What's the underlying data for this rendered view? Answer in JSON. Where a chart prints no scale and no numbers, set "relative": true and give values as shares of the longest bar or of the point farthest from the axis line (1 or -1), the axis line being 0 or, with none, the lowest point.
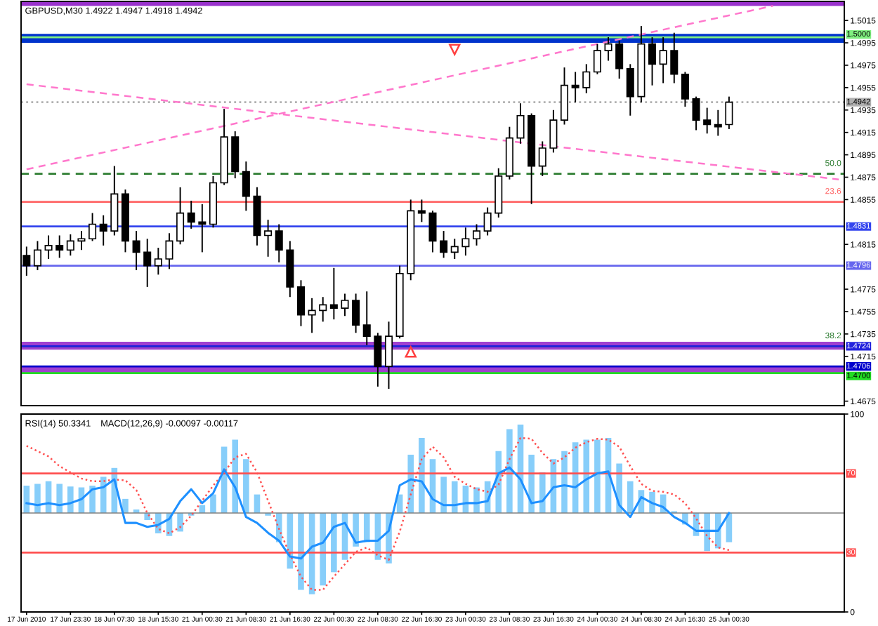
{
  "chart_data": [
    {
      "type": "candlestick",
      "title": "GBPUSD,M30 1.4922 1.4947 1.4918 1.4942",
      "categories": [
        null,
        null,
        null,
        null,
        null,
        null,
        null,
        null,
        null,
        null,
        null,
        null,
        null,
        null,
        null,
        null,
        null,
        null,
        null,
        null,
        null,
        null,
        null,
        null,
        null,
        null,
        null,
        null,
        null,
        null,
        null,
        null,
        null,
        null,
        null,
        null,
        null,
        null,
        null,
        null,
        null,
        null,
        null,
        null,
        null,
        null,
        null,
        null,
        null,
        null,
        null,
        null,
        null,
        null,
        null,
        null,
        null,
        null,
        null,
        null,
        null,
        null,
        null,
        null,
        null,
        null,
        null,
        null,
        null,
        null,
        null,
        null,
        null,
        null,
        null
      ],
      "ohlc": [
        [
          1.4805,
          1.4813,
          1.4787,
          1.4796
        ],
        [
          1.4796,
          1.4818,
          1.4792,
          1.481
        ],
        [
          1.481,
          1.4823,
          1.4802,
          1.4814
        ],
        [
          1.4814,
          1.4823,
          1.4803,
          1.481
        ],
        [
          1.481,
          1.4824,
          1.4805,
          1.4818
        ],
        [
          1.4818,
          1.4827,
          1.481,
          1.482
        ],
        [
          1.482,
          1.4843,
          1.4818,
          1.4833
        ],
        [
          1.4833,
          1.4841,
          1.4814,
          1.4827
        ],
        [
          1.4827,
          1.4885,
          1.4823,
          1.486
        ],
        [
          1.486,
          1.4864,
          1.4808,
          1.4818
        ],
        [
          1.4818,
          1.4827,
          1.4792,
          1.4808
        ],
        [
          1.4808,
          1.482,
          1.4777,
          1.4796
        ],
        [
          1.4796,
          1.4812,
          1.4788,
          1.4802
        ],
        [
          1.4802,
          1.4825,
          1.4793,
          1.4818
        ],
        [
          1.4818,
          1.4866,
          1.4815,
          1.4843
        ],
        [
          1.4843,
          1.4854,
          1.4829,
          1.4835
        ],
        [
          1.4835,
          1.4851,
          1.4808,
          1.4833
        ],
        [
          1.4833,
          1.4876,
          1.483,
          1.487
        ],
        [
          1.487,
          1.4936,
          1.4868,
          1.4911
        ],
        [
          1.4911,
          1.4916,
          1.4874,
          1.488
        ],
        [
          1.488,
          1.4889,
          1.4845,
          1.4858
        ],
        [
          1.4858,
          1.4866,
          1.4814,
          1.4823
        ],
        [
          1.4823,
          1.4837,
          1.4804,
          1.4827
        ],
        [
          1.4827,
          1.4833,
          1.4799,
          1.481
        ],
        [
          1.481,
          1.4818,
          1.4768,
          1.4777
        ],
        [
          1.4777,
          1.4783,
          1.4742,
          1.4752
        ],
        [
          1.4752,
          1.4767,
          1.4736,
          1.4756
        ],
        [
          1.4756,
          1.4768,
          1.4746,
          1.4761
        ],
        [
          1.4761,
          1.4794,
          1.4748,
          1.4758
        ],
        [
          1.4758,
          1.4771,
          1.4751,
          1.4765
        ],
        [
          1.4765,
          1.4771,
          1.4736,
          1.4743
        ],
        [
          1.4743,
          1.4773,
          1.4725,
          1.4733
        ],
        [
          1.4733,
          1.4736,
          1.4688,
          1.4706
        ],
        [
          1.4706,
          1.4746,
          1.4686,
          1.4733
        ],
        [
          1.4733,
          1.4796,
          1.4731,
          1.4789
        ],
        [
          1.4789,
          1.4855,
          1.4783,
          1.4845
        ],
        [
          1.4845,
          1.4855,
          1.4835,
          1.4843
        ],
        [
          1.4843,
          1.4845,
          1.4808,
          1.4818
        ],
        [
          1.4818,
          1.4827,
          1.4803,
          1.4808
        ],
        [
          1.4808,
          1.482,
          1.4802,
          1.4813
        ],
        [
          1.4813,
          1.483,
          1.4805,
          1.482
        ],
        [
          1.482,
          1.4833,
          1.4814,
          1.4827
        ],
        [
          1.4827,
          1.4848,
          1.4823,
          1.4843
        ],
        [
          1.4843,
          1.4883,
          1.4839,
          1.4876
        ],
        [
          1.4876,
          1.492,
          1.4873,
          1.491
        ],
        [
          1.491,
          1.4941,
          1.4905,
          1.493
        ],
        [
          1.493,
          1.4932,
          1.4851,
          1.4885
        ],
        [
          1.4885,
          1.4907,
          1.4876,
          1.4901
        ],
        [
          1.4901,
          1.4935,
          1.4897,
          1.4926
        ],
        [
          1.4926,
          1.4973,
          1.4922,
          1.4957
        ],
        [
          1.4957,
          1.4969,
          1.4942,
          1.4955
        ],
        [
          1.4955,
          1.4976,
          1.495,
          1.4969
        ],
        [
          1.4969,
          1.4994,
          1.4967,
          1.4988
        ],
        [
          1.4988,
          1.5,
          1.4979,
          1.4994
        ],
        [
          1.4994,
          1.4997,
          1.4963,
          1.4972
        ],
        [
          1.4972,
          1.4976,
          1.493,
          1.4947
        ],
        [
          1.4947,
          1.501,
          1.4942,
          1.4994
        ],
        [
          1.4994,
          1.5,
          1.4957,
          1.4976
        ],
        [
          1.4976,
          1.5,
          1.4959,
          1.4988
        ],
        [
          1.4988,
          1.5004,
          1.4959,
          1.4967
        ],
        [
          1.4967,
          1.4969,
          1.4938,
          1.4945
        ],
        [
          1.4945,
          1.4947,
          1.4917,
          1.4926
        ],
        [
          1.4926,
          1.4937,
          1.4914,
          1.4922
        ],
        [
          1.4922,
          1.4935,
          1.4912,
          1.492
        ],
        [
          1.4922,
          1.4947,
          1.4918,
          1.4942
        ],
        null,
        null,
        null,
        null,
        null,
        null,
        null,
        null,
        null,
        null
      ],
      "ylim": [
        1.4671,
        1.5032
      ],
      "yticks": [
        1.4675,
        1.4715,
        1.4735,
        1.4755,
        1.4775,
        1.4815,
        1.4855,
        1.4875,
        1.4895,
        1.4915,
        1.4935,
        1.4955,
        1.4975,
        1.4995,
        1.5015
      ],
      "tick_labels": "y",
      "bands": [
        {
          "axis": "y",
          "from": 1.5028,
          "to": 1.5032,
          "color": "#9932cc"
        },
        {
          "axis": "y",
          "from": 1.4995,
          "to": 1.5003,
          "color": "#0033cc"
        },
        {
          "axis": "y",
          "from": 1.4721,
          "to": 1.4728,
          "color": "#a040d0"
        },
        {
          "axis": "y",
          "from": 1.47,
          "to": 1.4706,
          "color": "#a040d0"
        }
      ],
      "ref_lines": [
        {
          "axis": "y",
          "value": 1.5,
          "label": "1.5000",
          "color": "#80f080"
        },
        {
          "axis": "y",
          "value": 1.4942,
          "label": "1.4942",
          "color": "#b0b0b0",
          "line_style": "dotted"
        },
        {
          "axis": "y",
          "value": 1.4878,
          "color": "#2e7d32",
          "line_style": "dashed"
        },
        {
          "axis": "y",
          "value": 1.4853,
          "color": "#ff6666"
        },
        {
          "axis": "y",
          "value": 1.4831,
          "label": "1.4831",
          "color": "#3344ee"
        },
        {
          "axis": "y",
          "value": 1.4796,
          "label": "1.4796",
          "color": "#6666ee"
        },
        {
          "axis": "y",
          "value": 1.4724,
          "color": "#2e7d32"
        },
        {
          "axis": "y",
          "value": 1.4724,
          "label": "1.4724",
          "color": "#2222dd"
        },
        {
          "axis": "y",
          "value": 1.4706,
          "label": "1.4706",
          "color": "#0000cc"
        },
        {
          "axis": "y",
          "value": 1.47,
          "label": "1.4700",
          "color": "#22dd22"
        }
      ],
      "annotations": [
        {
          "text": "50.0",
          "y": 1.4878
        },
        {
          "text": "23.6",
          "y": 1.4853
        },
        {
          "text": "38.2",
          "y": 1.4724
        }
      ],
      "series": [
        {
          "type": "line",
          "color": "#ff77cc",
          "line_style": "dashed",
          "values": [
            1.4882,
            null,
            null,
            null,
            null,
            null,
            null,
            null,
            null,
            null,
            null,
            null,
            null,
            null,
            null,
            null,
            null,
            null,
            null,
            null,
            null,
            null,
            null,
            null,
            null,
            null,
            null,
            null,
            null,
            null,
            null,
            null,
            null,
            null,
            null,
            null,
            null,
            null,
            null,
            null,
            null,
            null,
            null,
            null,
            null,
            null,
            null,
            null,
            null,
            null,
            null,
            null,
            1.4994,
            null,
            null,
            null,
            null,
            null,
            null,
            null,
            null,
            null,
            null,
            null,
            null,
            null,
            null,
            null,
            1.5028,
            null,
            null,
            null,
            null,
            null,
            null
          ]
        },
        {
          "type": "line",
          "color": "#ff77cc",
          "line_style": "dashed",
          "values": [
            1.4958,
            null,
            null,
            null,
            null,
            null,
            null,
            null,
            null,
            null,
            null,
            null,
            null,
            null,
            null,
            null,
            null,
            null,
            null,
            null,
            null,
            null,
            null,
            null,
            null,
            null,
            null,
            null,
            null,
            null,
            null,
            null,
            null,
            null,
            null,
            null,
            null,
            null,
            null,
            null,
            null,
            null,
            null,
            null,
            null,
            null,
            null,
            null,
            null,
            null,
            null,
            null,
            1.4898,
            null,
            null,
            null,
            null,
            null,
            null,
            null,
            null,
            null,
            null,
            null,
            null,
            null,
            null,
            null,
            null,
            null,
            null,
            null,
            null,
            null,
            1.4873
          ]
        },
        {
          "type": "scatter",
          "marker": "triangle",
          "color": "#ff4040",
          "values": [
            null,
            null,
            null,
            null,
            null,
            null,
            null,
            null,
            null,
            null,
            null,
            null,
            null,
            null,
            null,
            null,
            null,
            null,
            null,
            null,
            null,
            null,
            null,
            null,
            null,
            null,
            null,
            null,
            null,
            null,
            null,
            null,
            null,
            null,
            null,
            1.4719,
            null,
            null,
            null,
            1.4989,
            null,
            null,
            null,
            null,
            null,
            null,
            null,
            null,
            null,
            null,
            null,
            null,
            null,
            null,
            null,
            null,
            null,
            null,
            null,
            null,
            null,
            null,
            null,
            null,
            null,
            null,
            null,
            null,
            null,
            null,
            null,
            null,
            null,
            null,
            null
          ]
        }
      ]
    },
    {
      "type": "line",
      "title": "RSI(14) 50.3341",
      "categories": [
        "17 Jun 2010",
        null,
        null,
        null,
        "17 Jun 23:30",
        null,
        null,
        null,
        "18 Jun 07:30",
        null,
        null,
        null,
        "18 Jun 15:30",
        null,
        null,
        null,
        "21 Jun 00:30",
        null,
        null,
        null,
        "21 Jun 08:30",
        null,
        null,
        null,
        "21 Jun 16:30",
        null,
        null,
        null,
        "22 Jun 00:30",
        null,
        null,
        null,
        "22 Jun 08:30",
        null,
        null,
        null,
        "22 Jun 16:30",
        null,
        null,
        null,
        "23 Jun 00:30",
        null,
        null,
        null,
        "23 Jun 08:30",
        null,
        null,
        null,
        "23 Jun 16:30",
        null,
        null,
        null,
        "24 Jun 00:30",
        null,
        null,
        null,
        "24 Jun 08:30",
        null,
        null,
        null,
        "24 Jun 16:30",
        null,
        null,
        null,
        "25 Jun 00:30",
        null,
        null,
        null,
        null,
        null,
        null,
        null,
        null,
        null,
        null
      ],
      "series": [
        {
          "color": "#1e90ff",
          "values": [
            55,
            54,
            55,
            54,
            55,
            57,
            62,
            63,
            67,
            45,
            45,
            43,
            44,
            47,
            56,
            62,
            55,
            60,
            72,
            63,
            48,
            45,
            40,
            36,
            28,
            27,
            33,
            35,
            43,
            45,
            35,
            36,
            36,
            41,
            64,
            67,
            66,
            57,
            54,
            54,
            55,
            55,
            56,
            70,
            73,
            67,
            55,
            56,
            63,
            64,
            63,
            67,
            70,
            71,
            54,
            48,
            58,
            55,
            53,
            48,
            45,
            41,
            41,
            41,
            50,
            null,
            null,
            null,
            null,
            null,
            null,
            null,
            null,
            null,
            null
          ]
        }
      ],
      "ylim": [
        0,
        100
      ],
      "yticks": [
        0,
        100
      ],
      "ref_lines": [
        {
          "axis": "y",
          "value": 70,
          "label": "70",
          "color": "#ff5050"
        },
        {
          "axis": "y",
          "value": 30,
          "label": "30",
          "color": "#ff5050"
        }
      ]
    },
    {
      "type": "bar",
      "title": "MACD(12,26,9) -0.00097 -0.00117",
      "relative": true,
      "series": [
        {
          "type": "bar",
          "color": "#87cefa",
          "values": [
            0.31,
            0.33,
            0.36,
            0.33,
            0.3,
            0.29,
            0.31,
            0.41,
            0.51,
            0.16,
            0.04,
            -0.08,
            -0.23,
            -0.26,
            -0.21,
            -0.03,
            0.09,
            0.21,
            0.75,
            0.83,
            0.61,
            0.21,
            -0.03,
            -0.33,
            -0.63,
            -0.87,
            -0.92,
            -0.82,
            -0.67,
            -0.53,
            -0.38,
            -0.33,
            -0.53,
            -0.57,
            0.21,
            0.66,
            0.85,
            0.61,
            0.41,
            0.36,
            0.31,
            0.29,
            0.36,
            0.7,
            0.95,
            1,
            0.66,
            0.46,
            0.61,
            0.7,
            0.8,
            0.83,
            0.83,
            0.85,
            0.56,
            0.36,
            0.26,
            0.24,
            0.21,
            0.02,
            -0.13,
            -0.26,
            -0.43,
            -0.4,
            -0.33,
            null,
            null,
            null,
            null,
            null,
            null,
            null,
            null,
            null,
            null
          ]
        },
        {
          "type": "line",
          "color": "#ff5050",
          "line_style": "dotted",
          "values": [
            0.76,
            0.7,
            0.64,
            0.53,
            0.46,
            0.39,
            0.36,
            0.36,
            0.38,
            0.37,
            0.26,
            0,
            -0.18,
            -0.23,
            -0.16,
            -0.03,
            0.14,
            0.31,
            0.46,
            0.63,
            0.67,
            0.46,
            0.14,
            -0.18,
            -0.47,
            -0.72,
            -0.87,
            -0.87,
            -0.72,
            -0.58,
            -0.44,
            -0.39,
            -0.48,
            -0.53,
            -0.21,
            0.21,
            0.61,
            0.75,
            0.63,
            0.41,
            0.33,
            0.27,
            0.24,
            0.32,
            0.61,
            0.85,
            0.84,
            0.68,
            0.56,
            0.63,
            0.74,
            0.8,
            0.84,
            0.83,
            0.75,
            0.53,
            0.33,
            0.25,
            0.24,
            0.21,
            0.11,
            -0.06,
            -0.26,
            -0.39,
            -0.42,
            null,
            null,
            null,
            null,
            null,
            null,
            null,
            null,
            null,
            null
          ]
        }
      ]
    }
  ]
}
